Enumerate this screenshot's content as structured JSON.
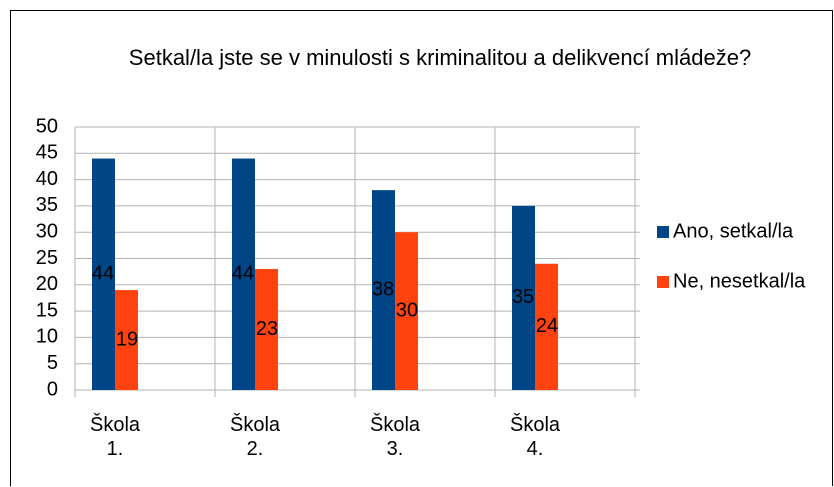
{
  "chart_data": {
    "type": "bar",
    "title": "Setkal/la jste se v minulosti s kriminalitou a delikvencí mládeže?",
    "categories": [
      "Škola 1.",
      "Škola 2.",
      "Škola 3.",
      "Škola 4."
    ],
    "series": [
      {
        "name": "Ano, setkal/la",
        "color": "#004586",
        "values": [
          44,
          44,
          38,
          35
        ]
      },
      {
        "name": "Ne, nesetkal/la",
        "color": "#ff420e",
        "values": [
          19,
          23,
          30,
          24
        ]
      }
    ],
    "ylim": [
      0,
      50
    ],
    "yticks": [
      0,
      5,
      10,
      15,
      20,
      25,
      30,
      35,
      40,
      45,
      50
    ],
    "grid": true,
    "legend": "right"
  }
}
